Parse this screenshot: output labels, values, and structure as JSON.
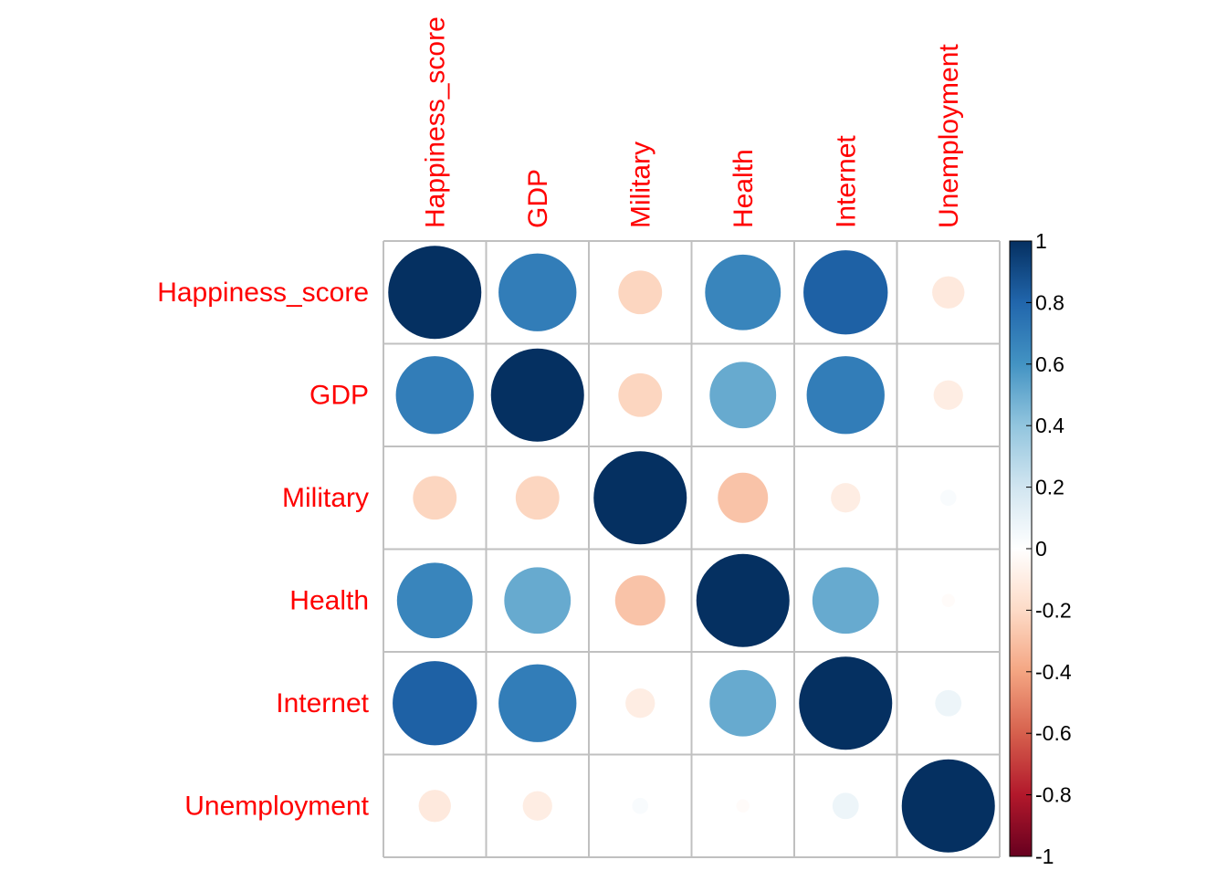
{
  "chart_data": {
    "type": "heatmap",
    "variables": [
      "Happiness_score",
      "GDP",
      "Military",
      "Health",
      "Internet",
      "Unemployment"
    ],
    "matrix": [
      [
        1.0,
        0.7,
        -0.22,
        0.66,
        0.82,
        -0.12
      ],
      [
        0.7,
        1.0,
        -0.22,
        0.51,
        0.7,
        -0.1
      ],
      [
        -0.22,
        -0.22,
        1.0,
        -0.29,
        -0.1,
        0.03
      ],
      [
        0.66,
        0.51,
        -0.29,
        1.0,
        0.51,
        -0.02
      ],
      [
        0.82,
        0.7,
        -0.1,
        0.51,
        1.0,
        0.08
      ],
      [
        -0.12,
        -0.1,
        0.03,
        -0.02,
        0.08,
        1.0
      ]
    ],
    "colorbar": {
      "range": [
        -1,
        1
      ],
      "ticks": [
        "1",
        "0.8",
        "0.6",
        "0.4",
        "0.2",
        "0",
        "-0.2",
        "-0.4",
        "-0.6",
        "-0.8",
        "-1"
      ],
      "tick_values": [
        1,
        0.8,
        0.6,
        0.4,
        0.2,
        0,
        -0.2,
        -0.4,
        -0.6,
        -0.8,
        -1
      ],
      "palette": [
        "#67001f",
        "#b2182b",
        "#d6604d",
        "#f4a582",
        "#fddbc7",
        "#ffffff",
        "#d1e5f0",
        "#92c5de",
        "#4393c3",
        "#2166ac",
        "#053061"
      ]
    },
    "label_color": "#ff0000",
    "grid_color": "#c0c0c0",
    "legend_position": "right"
  }
}
